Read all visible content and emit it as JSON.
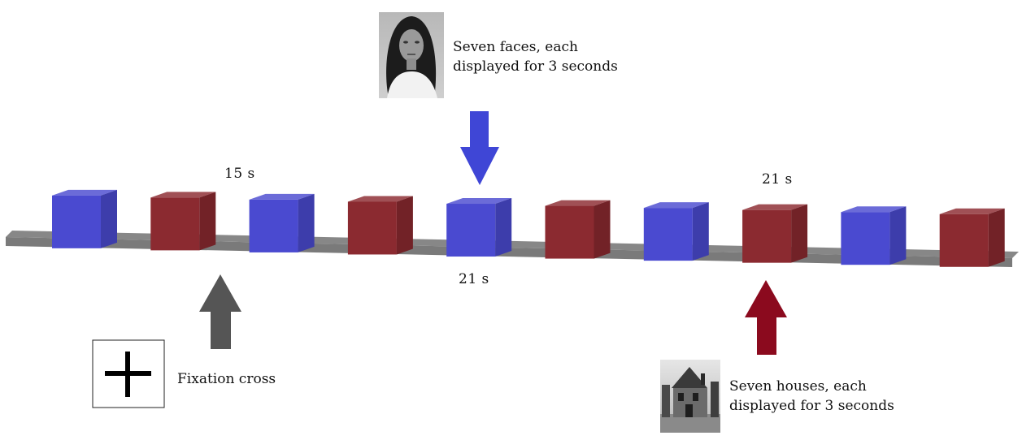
{
  "labels": {
    "faces_caption_line1": "Seven faces, each",
    "faces_caption_line2": "displayed for 3 seconds",
    "houses_caption_line1": "Seven houses, each",
    "houses_caption_line2": "displayed for 3 seconds",
    "fixation_caption": "Fixation cross",
    "duration_rest": "15 s",
    "duration_face_block": "21 s",
    "duration_house_block": "21 s"
  },
  "blocks": [
    {
      "kind": "face"
    },
    {
      "kind": "house"
    },
    {
      "kind": "face"
    },
    {
      "kind": "house"
    },
    {
      "kind": "face"
    },
    {
      "kind": "house"
    },
    {
      "kind": "face"
    },
    {
      "kind": "house"
    },
    {
      "kind": "face"
    },
    {
      "kind": "house"
    }
  ],
  "colors": {
    "face_block": "#4a4ad0",
    "house_block": "#8b2a30",
    "rest_bar": "#7a7a7a",
    "face_arrow": "#3f46d6",
    "house_arrow": "#8b0a1e",
    "fixation_arrow": "#555555"
  }
}
